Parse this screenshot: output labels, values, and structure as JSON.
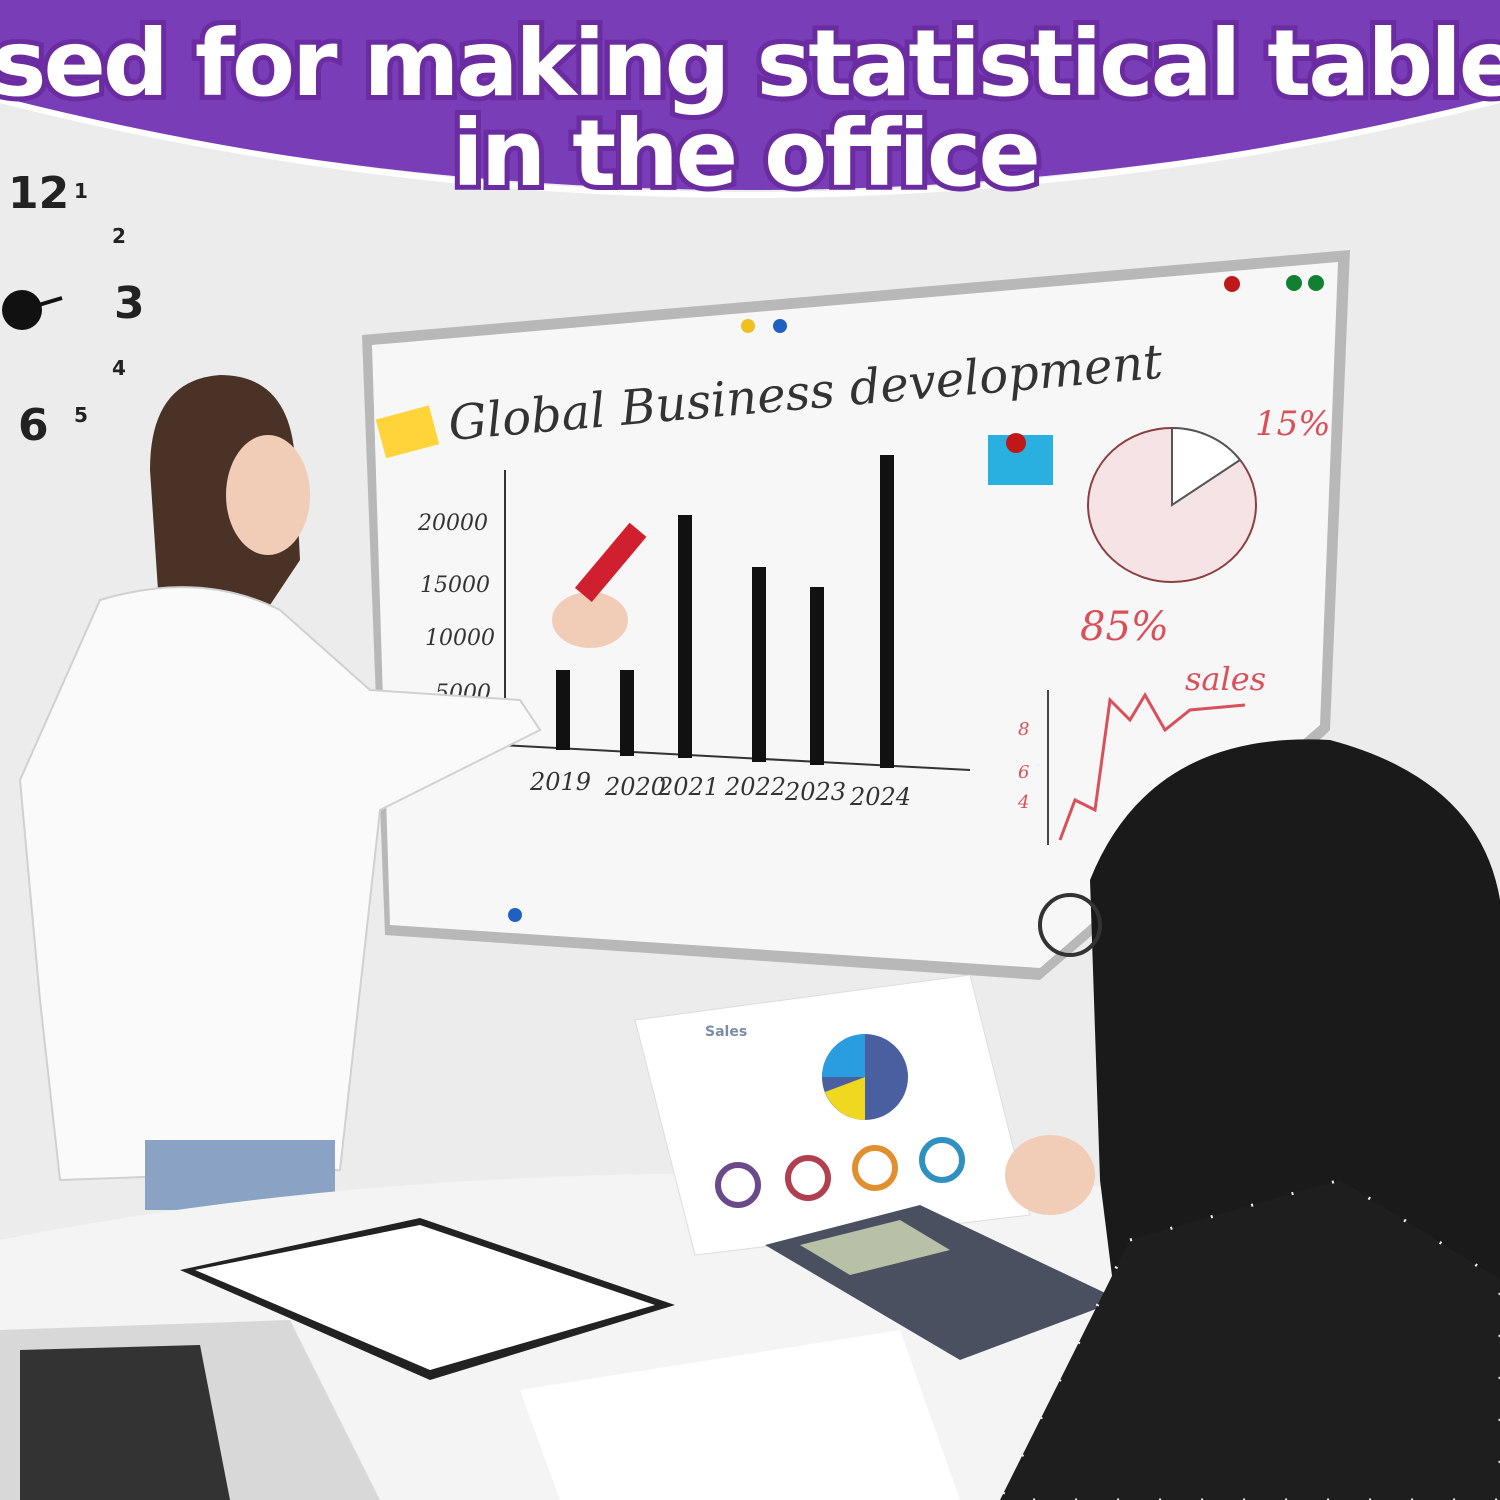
{
  "banner": {
    "title_lines": [
      "Used for making statistical tables",
      "in the office"
    ]
  },
  "clock": {
    "numbers": [
      "12",
      "1",
      "2",
      "3",
      "4",
      "6",
      "5"
    ]
  },
  "whiteboard": {
    "title": "Global Business development",
    "y_labels": [
      "20000",
      "15000",
      "10000",
      "5000"
    ],
    "x_labels": [
      "2019",
      "2020",
      "2021",
      "2022",
      "2023",
      "2024"
    ],
    "pie_labels": [
      "15%",
      "85%"
    ],
    "sales_label": "sales",
    "sales_y_labels": [
      "8",
      "6",
      "4"
    ]
  },
  "document": {
    "title": "Sales"
  }
}
